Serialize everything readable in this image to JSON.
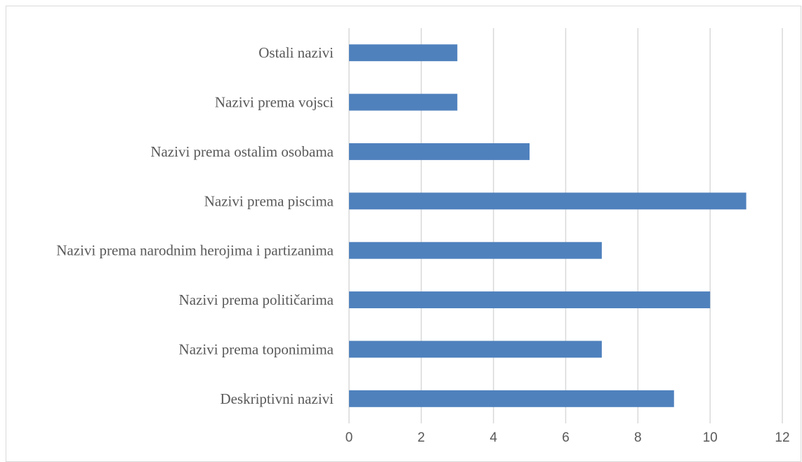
{
  "chart_data": {
    "type": "bar",
    "orientation": "horizontal",
    "categories": [
      "Ostali nazivi",
      "Nazivi prema vojsci",
      "Nazivi prema ostalim osobama",
      "Nazivi prema piscima",
      "Nazivi prema narodnim herojima i partizanima",
      "Nazivi prema političarima",
      "Nazivi prema toponimima",
      "Deskriptivni nazivi"
    ],
    "values": [
      3,
      3,
      5,
      11,
      7,
      10,
      7,
      9
    ],
    "xlim": [
      0,
      12
    ],
    "xticks": [
      0,
      2,
      4,
      6,
      8,
      10,
      12
    ],
    "grid": "vertical",
    "legend": "none",
    "bar_color": "#4f81bd",
    "title": "",
    "xlabel": "",
    "ylabel": ""
  }
}
